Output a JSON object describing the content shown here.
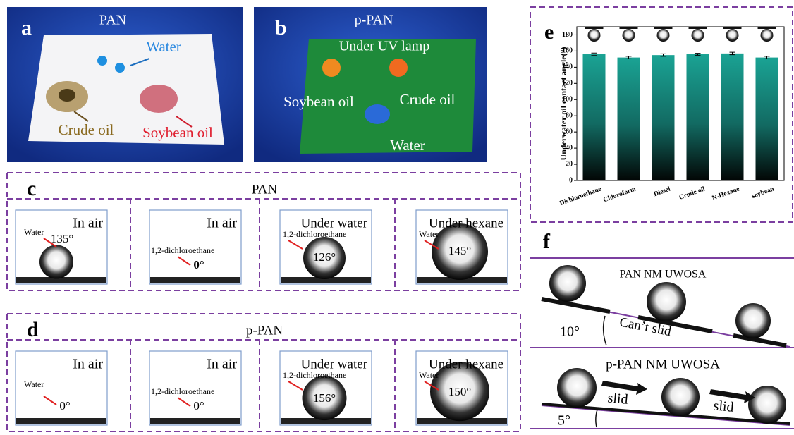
{
  "panels": {
    "a": {
      "label": "a",
      "title": "PAN",
      "texts": [
        "Water",
        "Crude oil",
        "Soybean oil"
      ]
    },
    "b": {
      "label": "b",
      "title": "p-PAN",
      "texts": [
        "Under UV lamp",
        "Soybean oil",
        "Crude oil",
        "Water"
      ]
    },
    "c": {
      "label": "c",
      "title": "PAN",
      "cells": [
        {
          "condition": "In air",
          "probe": "Water",
          "angle": "135°"
        },
        {
          "condition": "In air",
          "probe": "1,2-dichloroethane",
          "angle": "0°"
        },
        {
          "condition": "Under water",
          "probe": "1,2-dichloroethane",
          "angle": "126°"
        },
        {
          "condition": "Under hexane",
          "probe": "Water",
          "angle": "145°"
        }
      ]
    },
    "d": {
      "label": "d",
      "title": "p-PAN",
      "cells": [
        {
          "condition": "In air",
          "probe": "Water",
          "angle": "0°"
        },
        {
          "condition": "In air",
          "probe": "1,2-dichloroethane",
          "angle": "0°"
        },
        {
          "condition": "Under water",
          "probe": "1,2-dichloroethane",
          "angle": "156°"
        },
        {
          "condition": "Under hexane",
          "probe": "Water",
          "angle": "150°"
        }
      ]
    },
    "e": {
      "label": "e"
    },
    "f": {
      "label": "f",
      "top": {
        "title": "PAN NM UWOSA",
        "angle": "10°",
        "note": "Can’t slid"
      },
      "bottom": {
        "title": "p-PAN NM UWOSA",
        "angle": "5°",
        "notes": [
          "slid",
          "slid"
        ]
      }
    }
  },
  "chart_data": {
    "type": "bar",
    "y_label": "Underwater oil contact angle(°)",
    "categories": [
      "Dichloroethane",
      "Chloroform",
      "Diesel",
      "Crude oil",
      "N-Hexane",
      "soybean"
    ],
    "values": [
      156,
      152,
      155,
      156,
      157,
      152
    ],
    "errors": [
      1.5,
      1.5,
      1.5,
      1.2,
      1.5,
      1.5
    ],
    "ylim": [
      0,
      190
    ],
    "yticks": [
      0,
      20,
      40,
      60,
      80,
      100,
      120,
      140,
      160,
      180
    ]
  }
}
